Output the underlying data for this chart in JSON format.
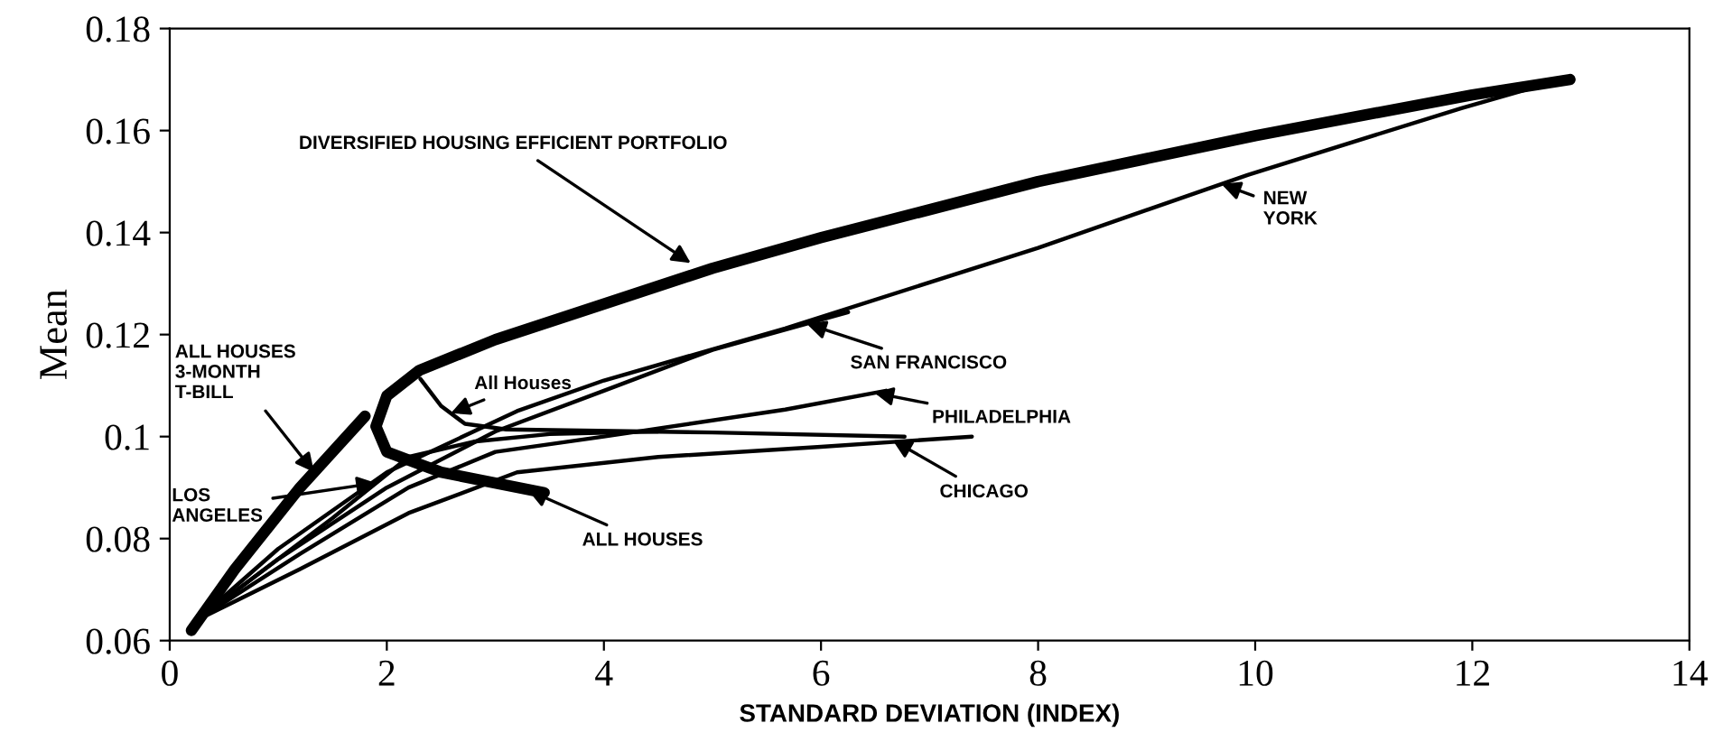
{
  "chart_data": {
    "type": "line",
    "xlabel": "STANDARD DEVIATION (INDEX)",
    "ylabel": "Mean",
    "xlim": [
      0,
      14
    ],
    "xticks": [
      0,
      2,
      4,
      6,
      8,
      10,
      12,
      14
    ],
    "ylim": [
      0.06,
      0.18
    ],
    "yticks": [
      0.06,
      0.08,
      0.1,
      0.12,
      0.14,
      0.16,
      0.18
    ],
    "grid": false,
    "legend": false,
    "marker": "none",
    "line_style": "solid",
    "series": [
      {
        "color": "#000000",
        "x": [
          0.2,
          0.6,
          1.2,
          1.8
        ],
        "values": [
          0.062,
          0.074,
          0.09,
          0.104
        ]
      },
      {
        "color": "#000000",
        "x": [
          3.45,
          2.5,
          2.0,
          1.9,
          2.0,
          2.3,
          3.0,
          4.0,
          5.0,
          6.0,
          8.0,
          10.0,
          12.0,
          12.9
        ],
        "values": [
          0.089,
          0.093,
          0.097,
          0.102,
          0.108,
          0.113,
          0.119,
          0.126,
          0.133,
          0.139,
          0.15,
          0.159,
          0.167,
          0.17
        ]
      },
      {
        "color": "#000000",
        "x": [
          0.25,
          1.0,
          2.0,
          3.2,
          4.0,
          5.67,
          8.0,
          9.93,
          11.9,
          12.77
        ],
        "values": [
          0.064,
          0.078,
          0.093,
          0.105,
          0.111,
          0.1212,
          0.137,
          0.1513,
          0.1644,
          0.1697
        ]
      },
      {
        "color": "#000000",
        "x": [
          0.25,
          1.0,
          2.0,
          3.0,
          4.0,
          5.0,
          6.25
        ],
        "values": [
          0.064,
          0.076,
          0.09,
          0.101,
          0.109,
          0.117,
          0.1244
        ]
      },
      {
        "color": "#000000",
        "x": [
          0.25,
          1.2,
          2.2,
          3.0,
          4.0,
          5.67,
          6.6
        ],
        "values": [
          0.064,
          0.077,
          0.09,
          0.097,
          0.1,
          0.1053,
          0.109
        ]
      },
      {
        "color": "#000000",
        "x": [
          0.25,
          1.2,
          2.2,
          3.2,
          4.5,
          6.0,
          7.39
        ],
        "values": [
          0.064,
          0.074,
          0.085,
          0.093,
          0.096,
          0.098,
          0.1
        ]
      },
      {
        "color": "#000000",
        "x": [
          0.25,
          1.5,
          2.2,
          2.8,
          3.5,
          4.5
        ],
        "values": [
          0.064,
          0.084,
          0.096,
          0.099,
          0.1005,
          0.101
        ]
      },
      {
        "color": "#000000",
        "x": [
          2.31,
          2.5,
          2.72,
          3.1,
          5.0,
          6.77
        ],
        "values": [
          0.1113,
          0.106,
          0.1025,
          0.1014,
          0.1008,
          0.1
        ]
      }
    ],
    "annotations": [
      {
        "text": "DIVERSIFIED HOUSING EFFICIENT PORTFOLIO",
        "x": 4.8,
        "y": 0.134
      },
      {
        "text": "NEW\nYORK",
        "x": 9.69,
        "y": 0.1495
      },
      {
        "text": "SAN FRANCISCO",
        "x": 5.87,
        "y": 0.1221
      },
      {
        "text": "PHILADELPHIA",
        "x": 6.49,
        "y": 0.1086
      },
      {
        "text": "CHICAGO",
        "x": 6.66,
        "y": 0.0993
      },
      {
        "text": "ALL HOUSES\n3-MONTH\nT-BILL",
        "x": 1.33,
        "y": 0.093
      },
      {
        "text": "LOS\nANGELES",
        "x": 1.9,
        "y": 0.0909
      },
      {
        "text": "All Houses",
        "x": 2.59,
        "y": 0.1046
      },
      {
        "text": "ALL HOUSES",
        "x": 3.3,
        "y": 0.0895
      }
    ]
  }
}
